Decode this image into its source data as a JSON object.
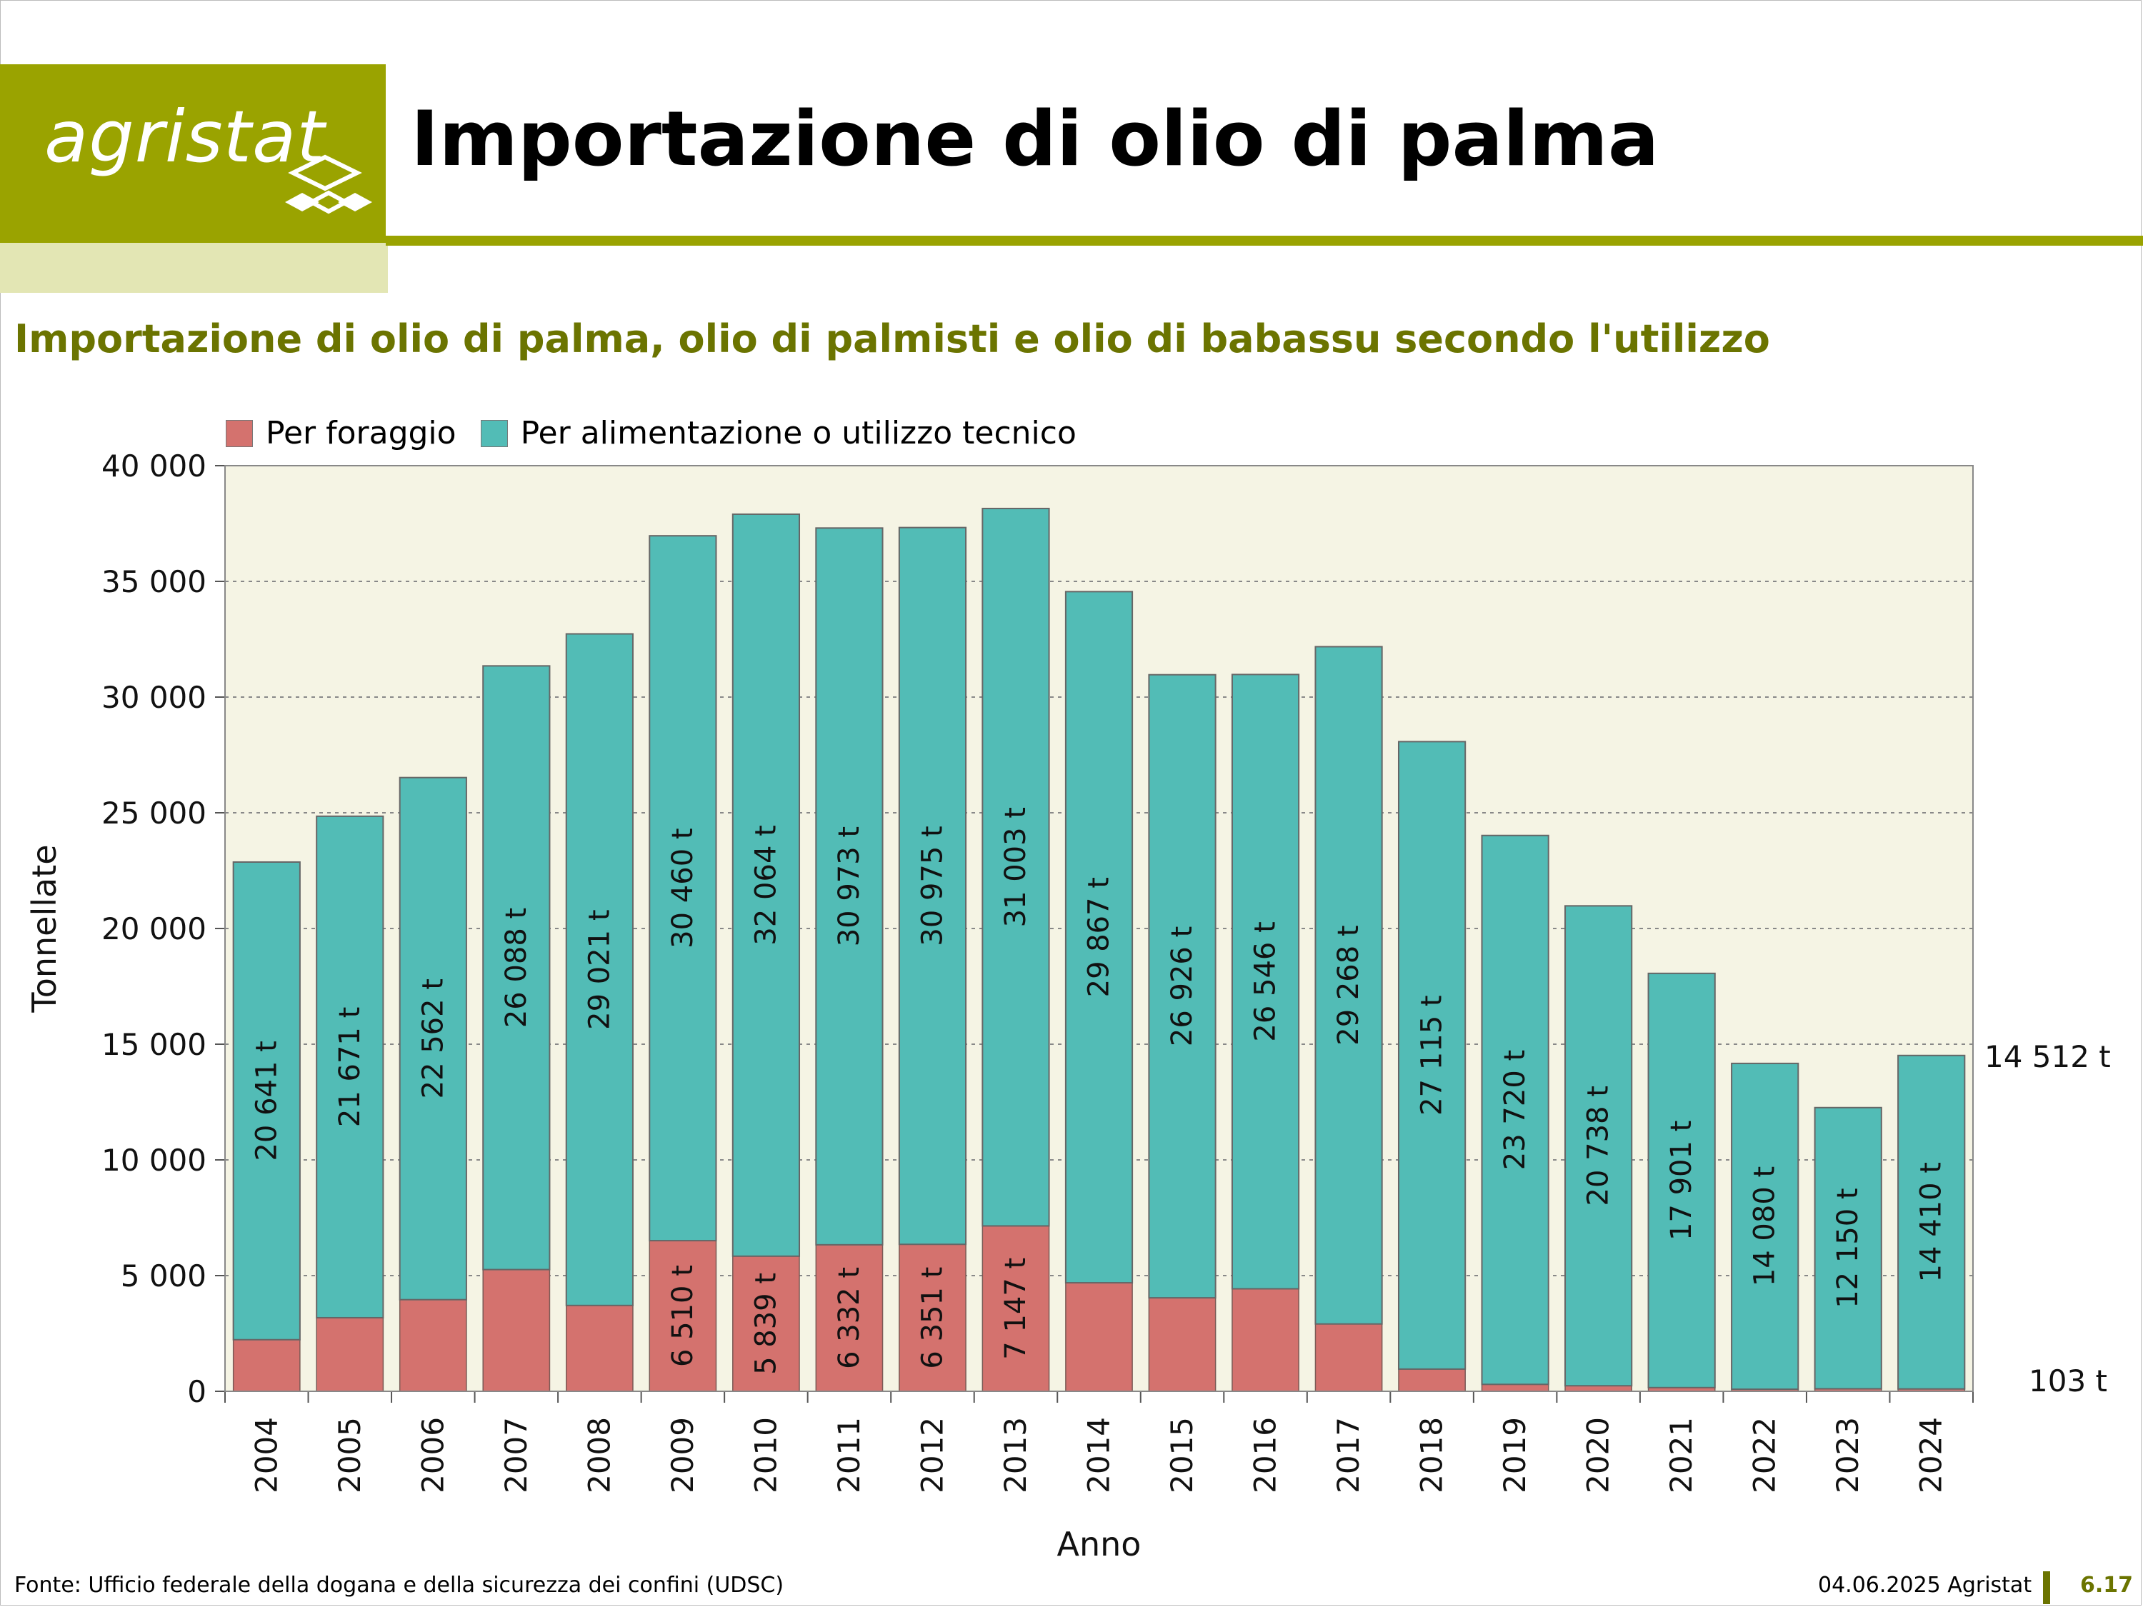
{
  "header": {
    "logo_text": "agristat",
    "title": "Importazione di olio di palma"
  },
  "colors": {
    "brand": "#9aa300",
    "brand_pale": "#e3e6b4",
    "subtitle": "#6b7400",
    "plot_bg": "#f5f4e4",
    "foraggio": "#d4726e",
    "alimentazione": "#52bcb6"
  },
  "chart_data": {
    "type": "bar",
    "stacked": true,
    "title": "Importazione di olio di palma, olio di palmisti e olio di babassu secondo l'utilizzo",
    "xlabel": "Anno",
    "ylabel": "Tonnellate",
    "ylim": [
      0,
      40000
    ],
    "yticks": [
      "0",
      "5 000",
      "10 000",
      "15 000",
      "20 000",
      "25 000",
      "30 000",
      "35 000",
      "40 000"
    ],
    "grid": true,
    "legend_position": "top-left",
    "categories": [
      "2004",
      "2005",
      "2006",
      "2007",
      "2008",
      "2009",
      "2010",
      "2011",
      "2012",
      "2013",
      "2014",
      "2015",
      "2016",
      "2017",
      "2018",
      "2019",
      "2020",
      "2021",
      "2022",
      "2023",
      "2024"
    ],
    "series": [
      {
        "name": "Per foraggio",
        "values": [
          2230,
          3180,
          3960,
          5260,
          3710,
          6510,
          5839,
          6332,
          6351,
          7147,
          4690,
          4040,
          4430,
          2910,
          960,
          300,
          240,
          160,
          90,
          110,
          103
        ],
        "labels": [
          "",
          "",
          "",
          "",
          "",
          "6 510 t",
          "5 839 t",
          "6 332 t",
          "6 351 t",
          "7 147 t",
          "",
          "",
          "",
          "",
          "",
          "",
          "",
          "",
          "",
          "",
          ""
        ]
      },
      {
        "name": "Per alimentazione o utilizzo tecnico",
        "values": [
          20641,
          21671,
          22562,
          26088,
          29021,
          30460,
          32064,
          30973,
          30975,
          31003,
          29867,
          26926,
          26546,
          29268,
          27115,
          23720,
          20738,
          17901,
          14080,
          12150,
          14410
        ],
        "labels": [
          "20 641 t",
          "21 671 t",
          "22 562 t",
          "26 088 t",
          "29 021 t",
          "30 460 t",
          "32 064 t",
          "30 973 t",
          "30 975 t",
          "31 003 t",
          "29 867 t",
          "26 926 t",
          "26 546 t",
          "29 268 t",
          "27 115 t",
          "23 720 t",
          "20 738 t",
          "17 901 t",
          "14 080 t",
          "12 150 t",
          "14 410 t"
        ]
      }
    ],
    "annotations": [
      "14 512 t",
      "103 t"
    ]
  },
  "footer": {
    "source": "Fonte: Ufficio federale della dogana e della sicurezza dei confini (UDSC)",
    "date": "04.06.2025 Agristat",
    "page": "6.17"
  }
}
